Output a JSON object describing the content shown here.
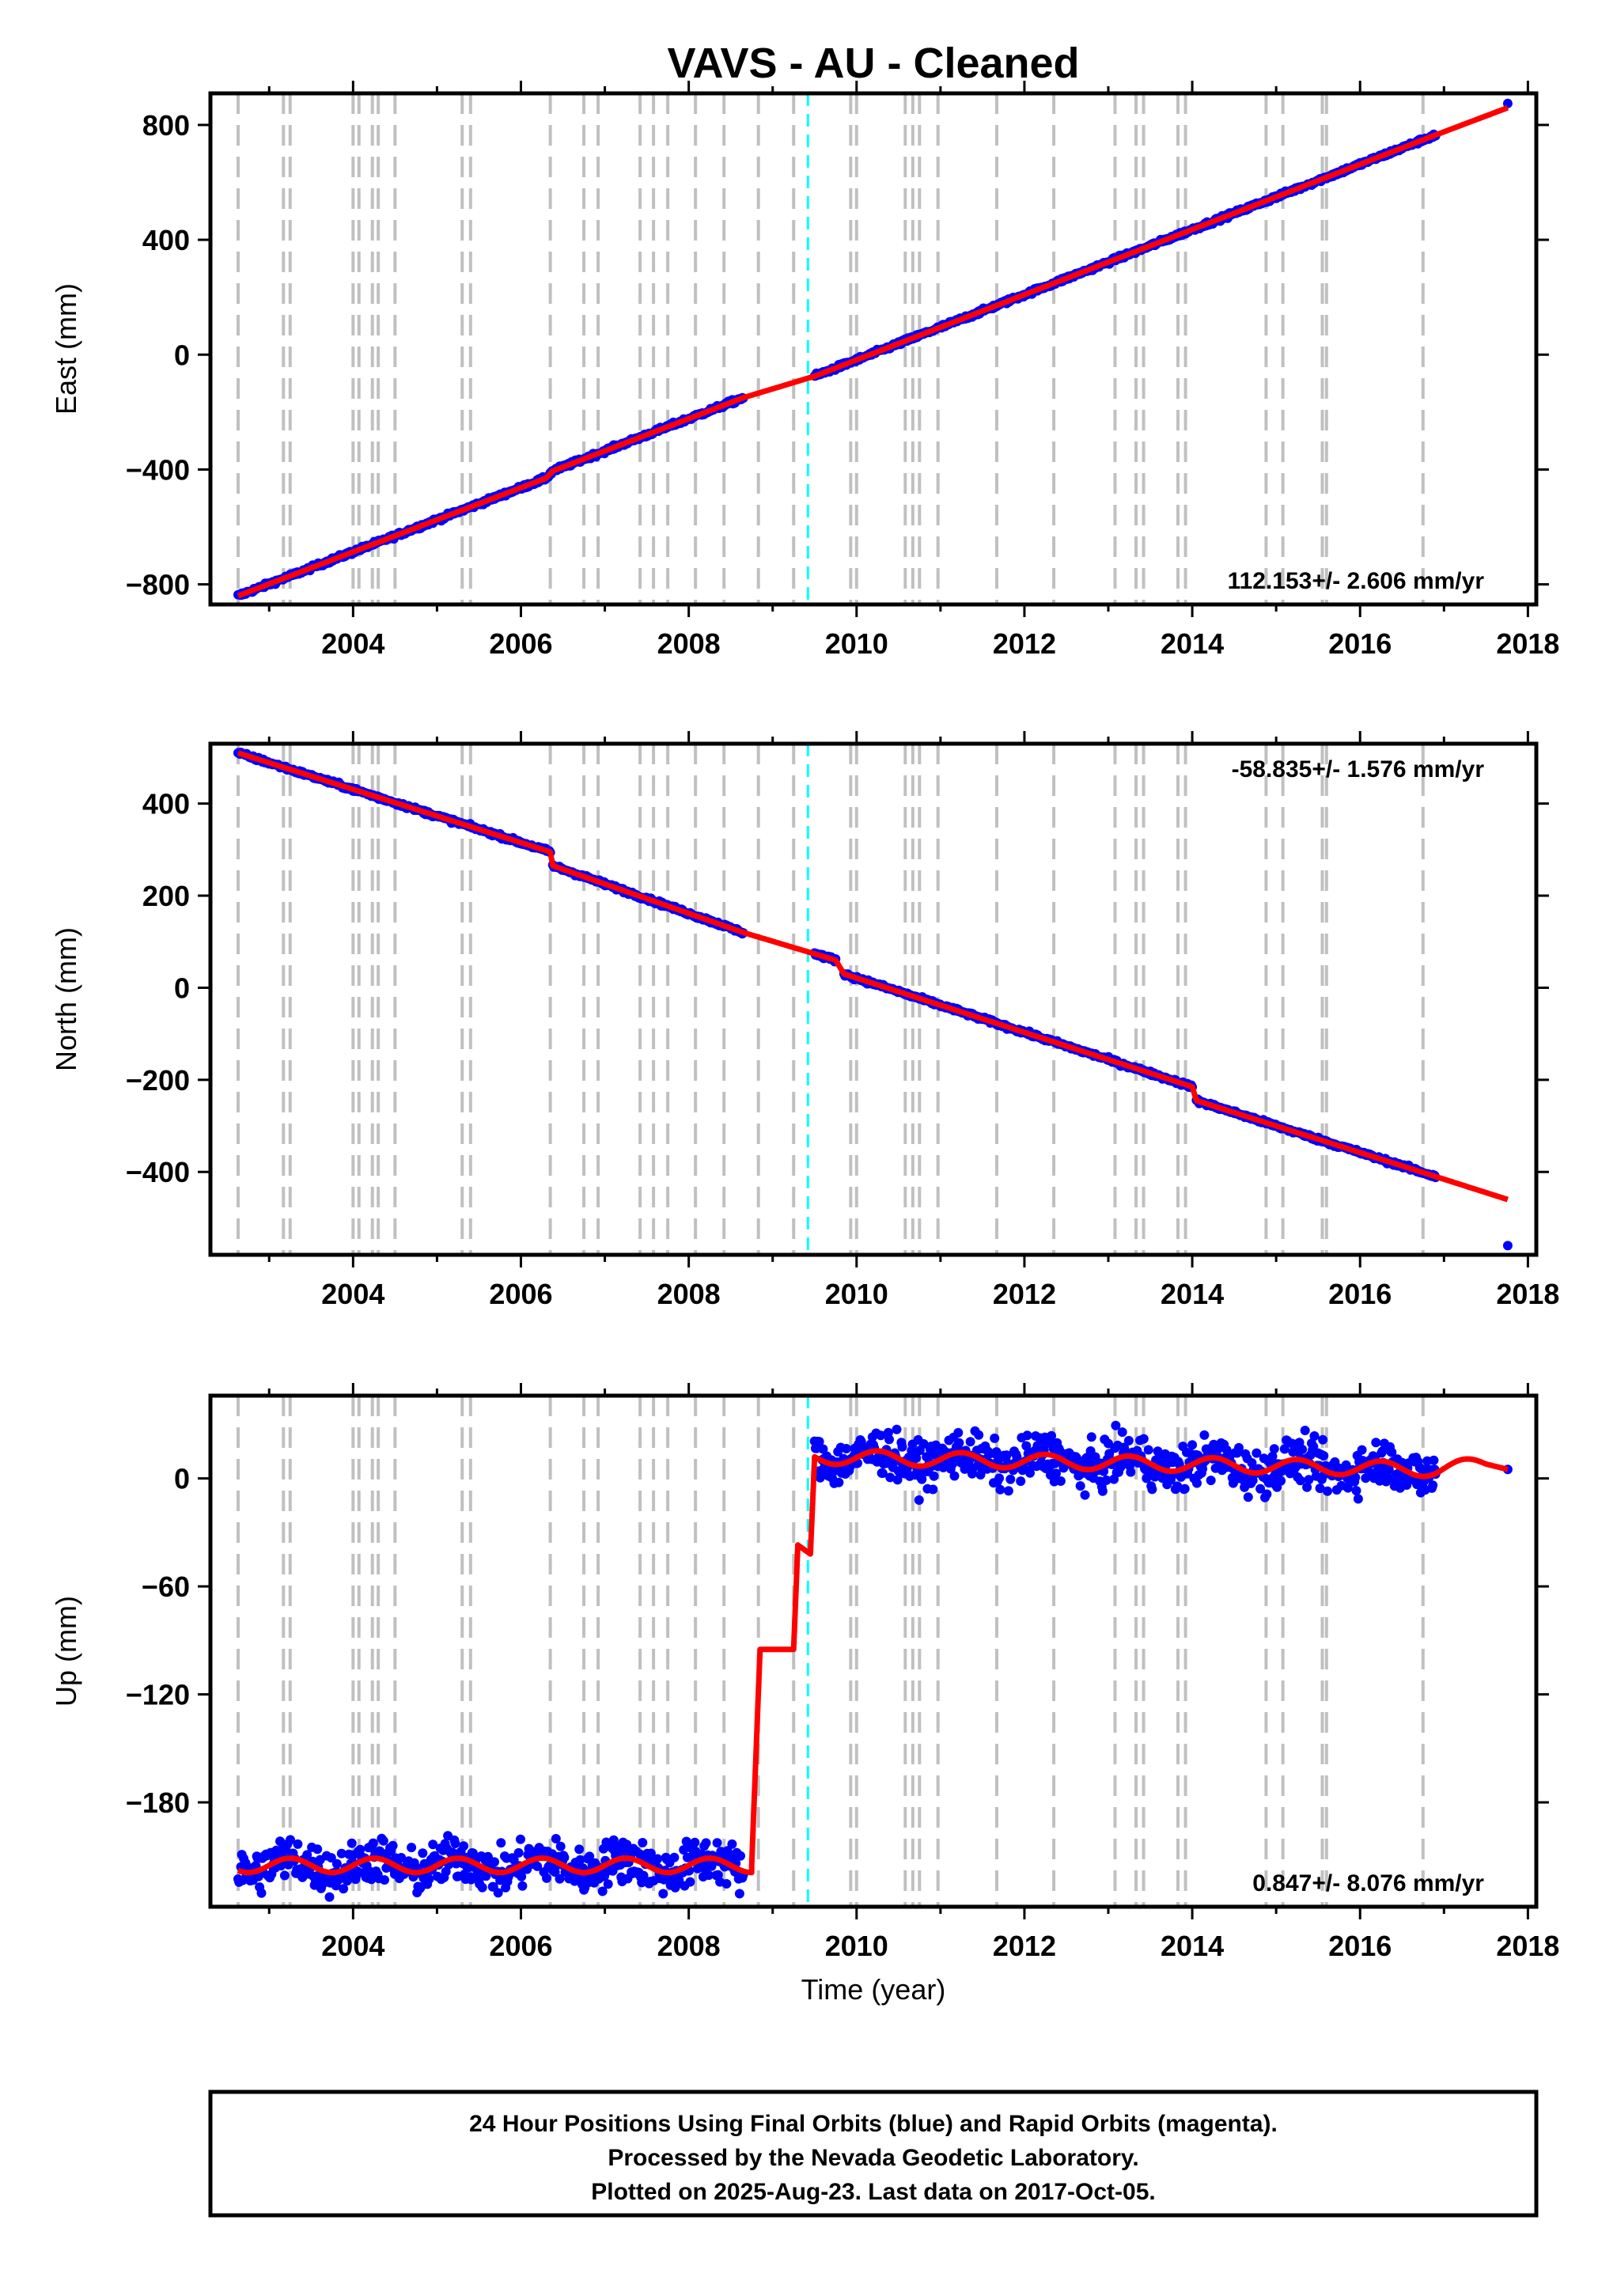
{
  "figure": {
    "title": "VAVS  - AU - Cleaned",
    "xlabel": "Time (year)",
    "footer": [
      "24 Hour Positions Using Final Orbits (blue) and Rapid Orbits (magenta).",
      "Processed by the Nevada Geodetic Laboratory.",
      "Plotted on 2025-Aug-23. Last data on 2017-Oct-05."
    ]
  },
  "colors": {
    "data_points": "#0000ff",
    "model_line": "#ff0000",
    "equipment_change_lines": "#c0c0c0",
    "earthquake_line": "#00ffff",
    "frame": "#000000"
  },
  "chart_data": [
    {
      "type": "scatter",
      "name": "east",
      "ylabel": "East (mm)",
      "rate_label": "112.153+/- 2.606 mm/yr",
      "rate_position": "bottom-right",
      "xlim": [
        2002.3,
        2018.1
      ],
      "ylim": [
        -870,
        910
      ],
      "xticks": [
        2004,
        2006,
        2008,
        2010,
        2012,
        2014,
        2016,
        2018
      ],
      "yticks": [
        -800,
        -400,
        0,
        400,
        800
      ],
      "grid": false,
      "series": [
        {
          "kind": "points",
          "segments": [
            [
              2002.63,
              -840,
              2008.65,
              -150
            ],
            [
              2009.5,
              -75,
              2016.9,
              765
            ]
          ],
          "last_point": [
            2017.76,
            875
          ]
        },
        {
          "kind": "model",
          "x": [
            2002.63,
            2006.3,
            2006.38,
            2008.65,
            2009.5,
            2016.9,
            2017.76
          ],
          "y": [
            -840,
            -430,
            -405,
            -150,
            -75,
            765,
            860
          ]
        }
      ]
    },
    {
      "type": "scatter",
      "name": "north",
      "ylabel": "North (mm)",
      "rate_label": "-58.835+/- 1.576 mm/yr",
      "rate_position": "top-right",
      "xlim": [
        2002.3,
        2018.1
      ],
      "ylim": [
        -580,
        530
      ],
      "xticks": [
        2004,
        2006,
        2008,
        2010,
        2012,
        2014,
        2016,
        2018
      ],
      "yticks": [
        -400,
        -200,
        0,
        200,
        400
      ],
      "grid": false,
      "series": [
        {
          "kind": "points",
          "segments": [
            [
              2002.63,
              510,
              2006.35,
              295
            ],
            [
              2006.38,
              265,
              2008.65,
              120
            ],
            [
              2009.5,
              72,
              2009.75,
              55
            ],
            [
              2009.85,
              30,
              2014.0,
              -215
            ],
            [
              2014.05,
              -245,
              2016.9,
              -410
            ]
          ],
          "last_point": [
            2017.76,
            -560
          ]
        },
        {
          "kind": "model",
          "x": [
            2002.63,
            2006.35,
            2006.38,
            2008.65,
            2009.75,
            2009.85,
            2014.0,
            2014.05,
            2016.9,
            2017.76
          ],
          "y": [
            510,
            295,
            265,
            120,
            60,
            30,
            -215,
            -245,
            -410,
            -460
          ]
        }
      ]
    },
    {
      "type": "scatter",
      "name": "up",
      "ylabel": "Up (mm)",
      "rate_label": "0.847+/- 8.076 mm/yr",
      "rate_position": "bottom-right",
      "xlim": [
        2002.3,
        2018.1
      ],
      "ylim": [
        -238,
        46
      ],
      "xticks": [
        2004,
        2006,
        2008,
        2010,
        2012,
        2014,
        2016,
        2018
      ],
      "yticks": [
        -180,
        -120,
        -60,
        0
      ],
      "grid": false,
      "series": [
        {
          "kind": "points",
          "segments": [
            [
              2002.63,
              -215,
              2008.65,
              -215
            ],
            [
              2009.5,
              10,
              2016.9,
              5
            ]
          ],
          "last_point": [
            2017.76,
            5
          ]
        },
        {
          "kind": "model",
          "x": [
            2002.63,
            2008.75,
            2008.85,
            2009.25,
            2009.3,
            2009.45,
            2009.5,
            2016.9,
            2017.5,
            2017.76
          ],
          "y": [
            -215,
            -215,
            -95,
            -95,
            -37,
            -42,
            12,
            5,
            8,
            5
          ]
        }
      ]
    }
  ],
  "equipment_change_years": [
    2002.63,
    2003.17,
    2003.25,
    2004.0,
    2004.07,
    2004.23,
    2004.3,
    2004.5,
    2005.3,
    2005.4,
    2006.35,
    2006.75,
    2006.92,
    2007.42,
    2007.58,
    2007.75,
    2008.08,
    2008.42,
    2008.83,
    2009.25,
    2009.93,
    2010.0,
    2010.58,
    2010.67,
    2010.75,
    2010.97,
    2011.67,
    2012.35,
    2013.08,
    2013.33,
    2013.42,
    2013.83,
    2013.92,
    2014.88,
    2015.08,
    2015.55,
    2015.6,
    2016.75
  ],
  "earthquake_years": [
    2009.42
  ]
}
